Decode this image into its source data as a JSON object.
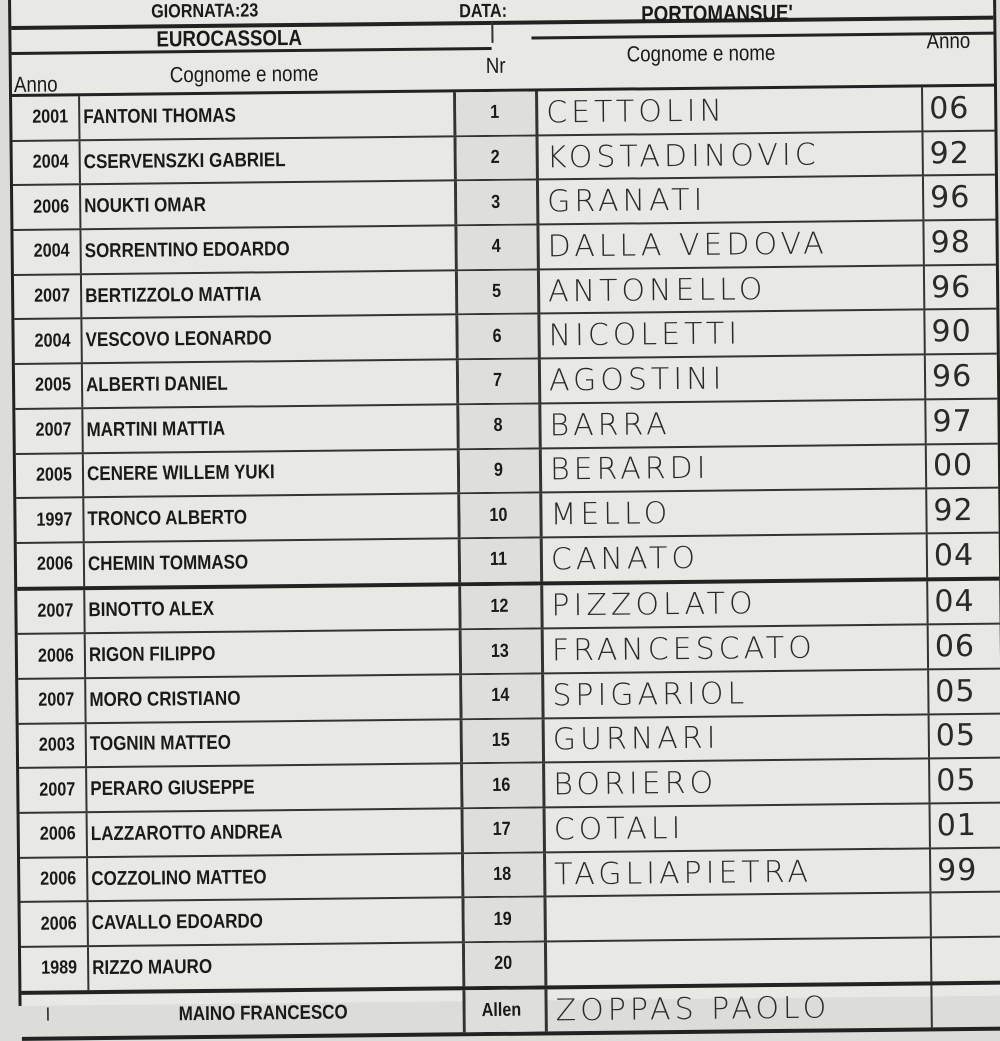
{
  "top": {
    "giornata": "GIORNATA:23",
    "data": "DATA:"
  },
  "home": {
    "team": "EUROCASSOLA",
    "anno_header": "Anno",
    "name_header": "Cognome e nome"
  },
  "nr_header": "Nr",
  "away": {
    "team": "PORTOMANSUE'",
    "name_header": "Cognome e nome",
    "anno_header": "Anno"
  },
  "rows": [
    {
      "anno": "2001",
      "name": "FANTONI THOMAS",
      "nr": "1",
      "away_name": "CETTOLIN",
      "away_anno": "06"
    },
    {
      "anno": "2004",
      "name": "CSERVENSZKI GABRIEL",
      "nr": "2",
      "away_name": "KOSTADINOVIC",
      "away_anno": "92"
    },
    {
      "anno": "2006",
      "name": "NOUKTI OMAR",
      "nr": "3",
      "away_name": "GRANATI",
      "away_anno": "96"
    },
    {
      "anno": "2004",
      "name": "SORRENTINO EDOARDO",
      "nr": "4",
      "away_name": "DALLA VEDOVA",
      "away_anno": "98"
    },
    {
      "anno": "2007",
      "name": "BERTIZZOLO MATTIA",
      "nr": "5",
      "away_name": "ANTONELLO",
      "away_anno": "96"
    },
    {
      "anno": "2004",
      "name": "VESCOVO LEONARDO",
      "nr": "6",
      "away_name": "NICOLETTI",
      "away_anno": "90"
    },
    {
      "anno": "2005",
      "name": "ALBERTI DANIEL",
      "nr": "7",
      "away_name": "AGOSTINI",
      "away_anno": "96"
    },
    {
      "anno": "2007",
      "name": "MARTINI MATTIA",
      "nr": "8",
      "away_name": "BARRA",
      "away_anno": "97"
    },
    {
      "anno": "2005",
      "name": "CENERE WILLEM YUKI",
      "nr": "9",
      "away_name": "BERARDI",
      "away_anno": "00"
    },
    {
      "anno": "1997",
      "name": "TRONCO ALBERTO",
      "nr": "10",
      "away_name": "MELLO",
      "away_anno": "92"
    },
    {
      "anno": "2006",
      "name": "CHEMIN TOMMASO",
      "nr": "11",
      "away_name": "CANATO",
      "away_anno": "04"
    },
    {
      "anno": "2007",
      "name": "BINOTTO ALEX",
      "nr": "12",
      "away_name": "PIZZOLATO",
      "away_anno": "04"
    },
    {
      "anno": "2006",
      "name": "RIGON FILIPPO",
      "nr": "13",
      "away_name": "FRANCESCATO",
      "away_anno": "06"
    },
    {
      "anno": "2007",
      "name": "MORO CRISTIANO",
      "nr": "14",
      "away_name": "SPIGARIOL",
      "away_anno": "05"
    },
    {
      "anno": "2003",
      "name": "TOGNIN MATTEO",
      "nr": "15",
      "away_name": "GURNARI",
      "away_anno": "05"
    },
    {
      "anno": "2007",
      "name": "PERARO GIUSEPPE",
      "nr": "16",
      "away_name": "BORIERO",
      "away_anno": "05"
    },
    {
      "anno": "2006",
      "name": "LAZZAROTTO ANDREA",
      "nr": "17",
      "away_name": "COTALI",
      "away_anno": "01"
    },
    {
      "anno": "2006",
      "name": "COZZOLINO MATTEO",
      "nr": "18",
      "away_name": "TAGLIAPIETRA",
      "away_anno": "99"
    },
    {
      "anno": "2006",
      "name": "CAVALLO EDOARDO",
      "nr": "19",
      "away_name": "",
      "away_anno": ""
    },
    {
      "anno": "1989",
      "name": "RIZZO MAURO",
      "nr": "20",
      "away_name": "",
      "away_anno": ""
    }
  ],
  "coach": {
    "mark": "I",
    "home": "MAINO FRANCESCO",
    "label": "Allen",
    "away": "ZOPPAS PAOLO"
  }
}
